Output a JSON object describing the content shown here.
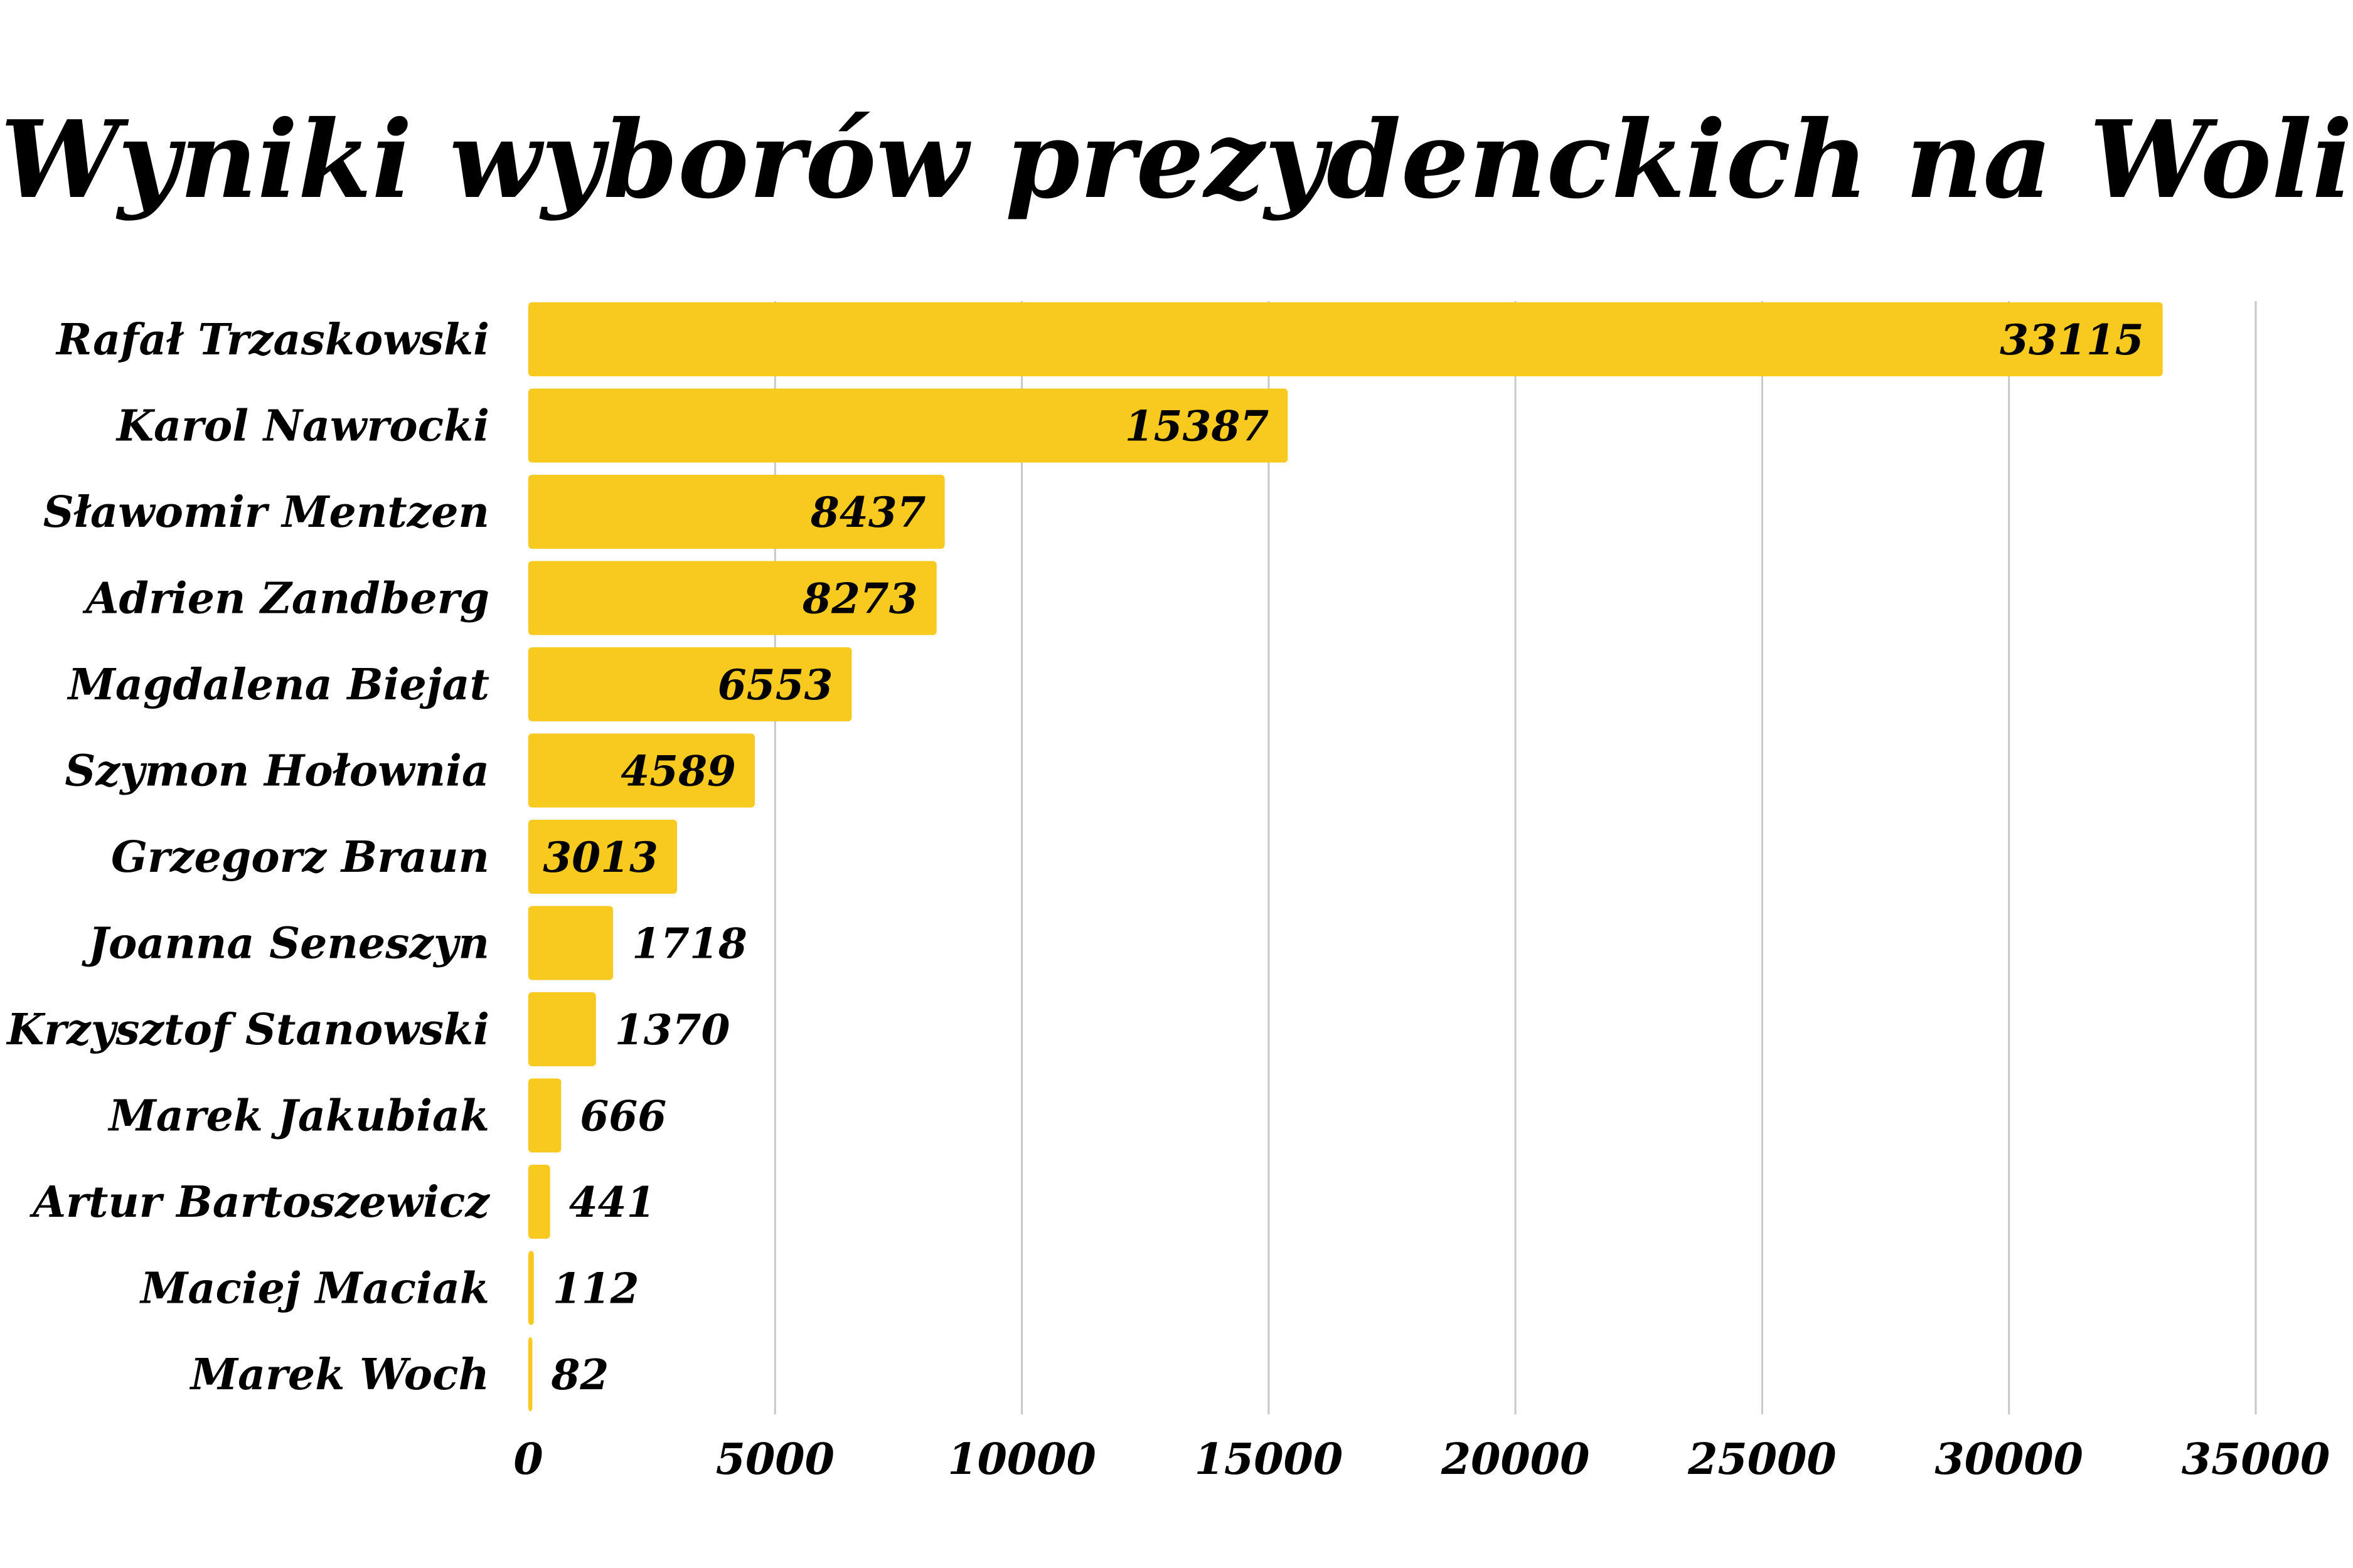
{
  "chart_data": {
    "type": "bar",
    "orientation": "horizontal",
    "title": "Wyniki wyborów prezydenckich na Woli",
    "xlabel": "",
    "ylabel": "",
    "categories": [
      "Rafał Trzaskowski",
      "Karol Nawrocki",
      "Sławomir Mentzen",
      "Adrien Zandberg",
      "Magdalena Biejat",
      "Szymon Hołownia",
      "Grzegorz Braun",
      "Joanna Seneszyn",
      "Krzysztof Stanowski",
      "Marek Jakubiak",
      "Artur Bartoszewicz",
      "Maciej Maciak",
      "Marek Woch"
    ],
    "values": [
      33115,
      15387,
      8437,
      8273,
      6553,
      4589,
      3013,
      1718,
      1370,
      666,
      441,
      112,
      82
    ],
    "xlim": [
      0,
      35000
    ],
    "xticks": [
      0,
      5000,
      10000,
      15000,
      20000,
      25000,
      30000,
      35000
    ],
    "grid": true,
    "legend": "none",
    "bar_color": "#F8C91E",
    "text_color": "#000000",
    "grid_color": "#C8C8C8"
  }
}
